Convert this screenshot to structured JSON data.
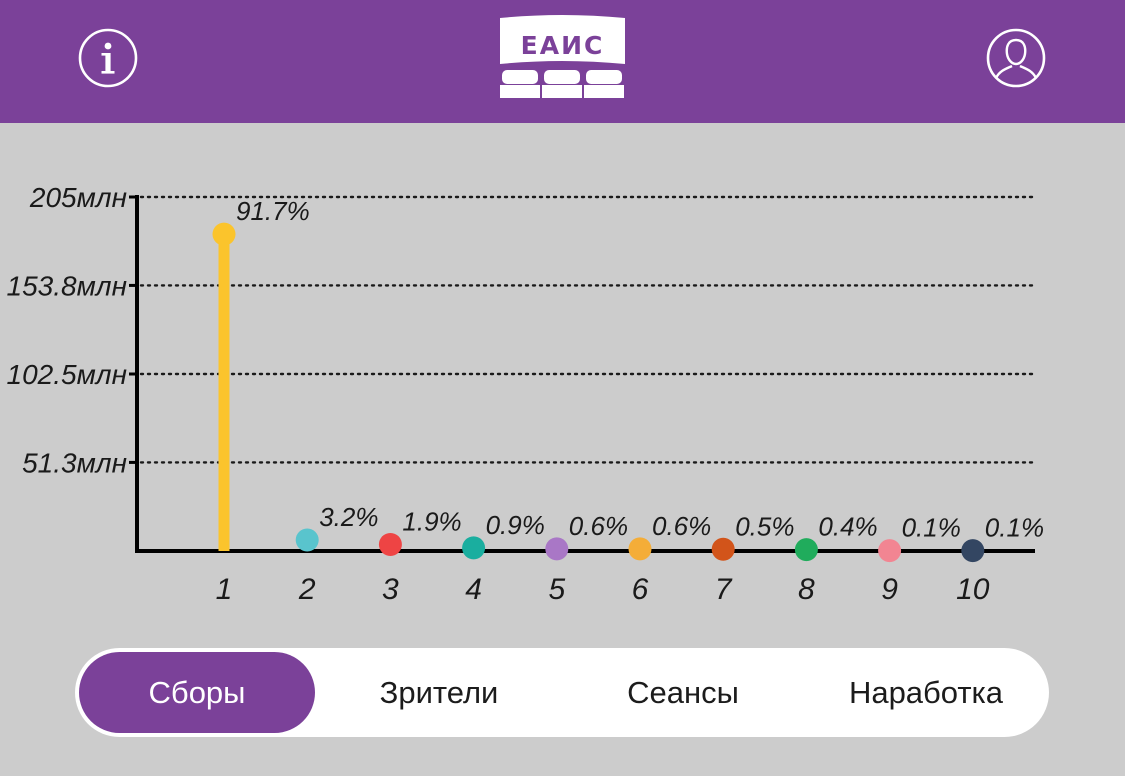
{
  "header": {
    "logo_text": "ЕАИС",
    "info_icon": "info-icon",
    "profile_icon": "user-profile-icon",
    "background": "#7b4199"
  },
  "chart_data": {
    "type": "scatter",
    "style": "lollipop",
    "categories": [
      "1",
      "2",
      "3",
      "4",
      "5",
      "6",
      "7",
      "8",
      "9",
      "10"
    ],
    "values": [
      183.5,
      6.4,
      3.8,
      1.8,
      1.2,
      1.2,
      1.0,
      0.8,
      0.2,
      0.2
    ],
    "value_unit": "млн",
    "data_labels": [
      "91.7%",
      "3.2%",
      "1.9%",
      "0.9%",
      "0.6%",
      "0.6%",
      "0.5%",
      "0.4%",
      "0.1%",
      "0.1%"
    ],
    "colors": [
      "#fbc42c",
      "#59c4cd",
      "#ee4444",
      "#1aae9f",
      "#a977c6",
      "#f4ad38",
      "#d2541a",
      "#20ac5c",
      "#f28592",
      "#334662"
    ],
    "stem_color": "#fbc42c",
    "y_ticks": [
      "51.3млн",
      "102.5млн",
      "153.8млн",
      "205млн"
    ],
    "y_tick_values": [
      51.3,
      102.5,
      153.8,
      205
    ],
    "ylim": [
      0,
      205
    ],
    "grid": "dotted horizontal",
    "title": "",
    "xlabel": "",
    "ylabel": ""
  },
  "tabs": {
    "items": [
      "Сборы",
      "Зрители",
      "Сеансы",
      "Наработка"
    ],
    "active": 0,
    "active_color": "#7b4199"
  }
}
